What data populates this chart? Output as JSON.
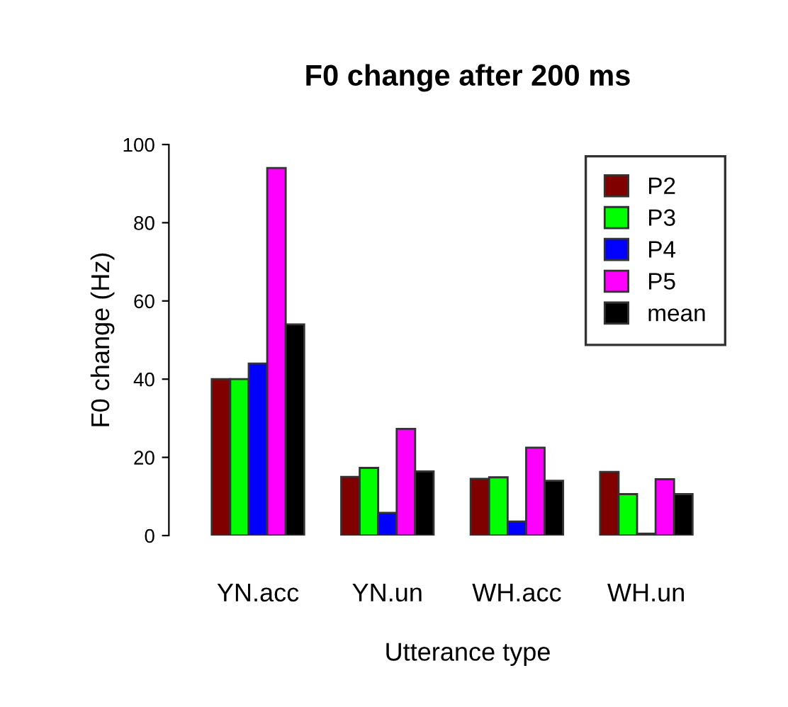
{
  "chart_data": {
    "type": "bar",
    "title": "F0 change after 200 ms",
    "xlabel": "Utterance type",
    "ylabel": "F0 change (Hz)",
    "categories": [
      "YN.acc",
      "YN.un",
      "WH.acc",
      "WH.un"
    ],
    "series": [
      {
        "name": "P2",
        "color": "#800000",
        "values": [
          40,
          15,
          14.5,
          16.3
        ]
      },
      {
        "name": "P3",
        "color": "#00ff00",
        "values": [
          40,
          17.3,
          14.9,
          10.6
        ]
      },
      {
        "name": "P4",
        "color": "#0000ff",
        "values": [
          44,
          5.8,
          3.6,
          0.5
        ]
      },
      {
        "name": "P5",
        "color": "#ff00ff",
        "values": [
          94,
          27.3,
          22.5,
          14.4
        ]
      },
      {
        "name": "mean",
        "color": "#000000",
        "values": [
          54,
          16.4,
          14,
          10.6
        ]
      }
    ],
    "ylim": [
      0,
      100
    ],
    "yticks": [
      0,
      20,
      40,
      60,
      80,
      100
    ],
    "grid": false,
    "legend": "top right"
  }
}
